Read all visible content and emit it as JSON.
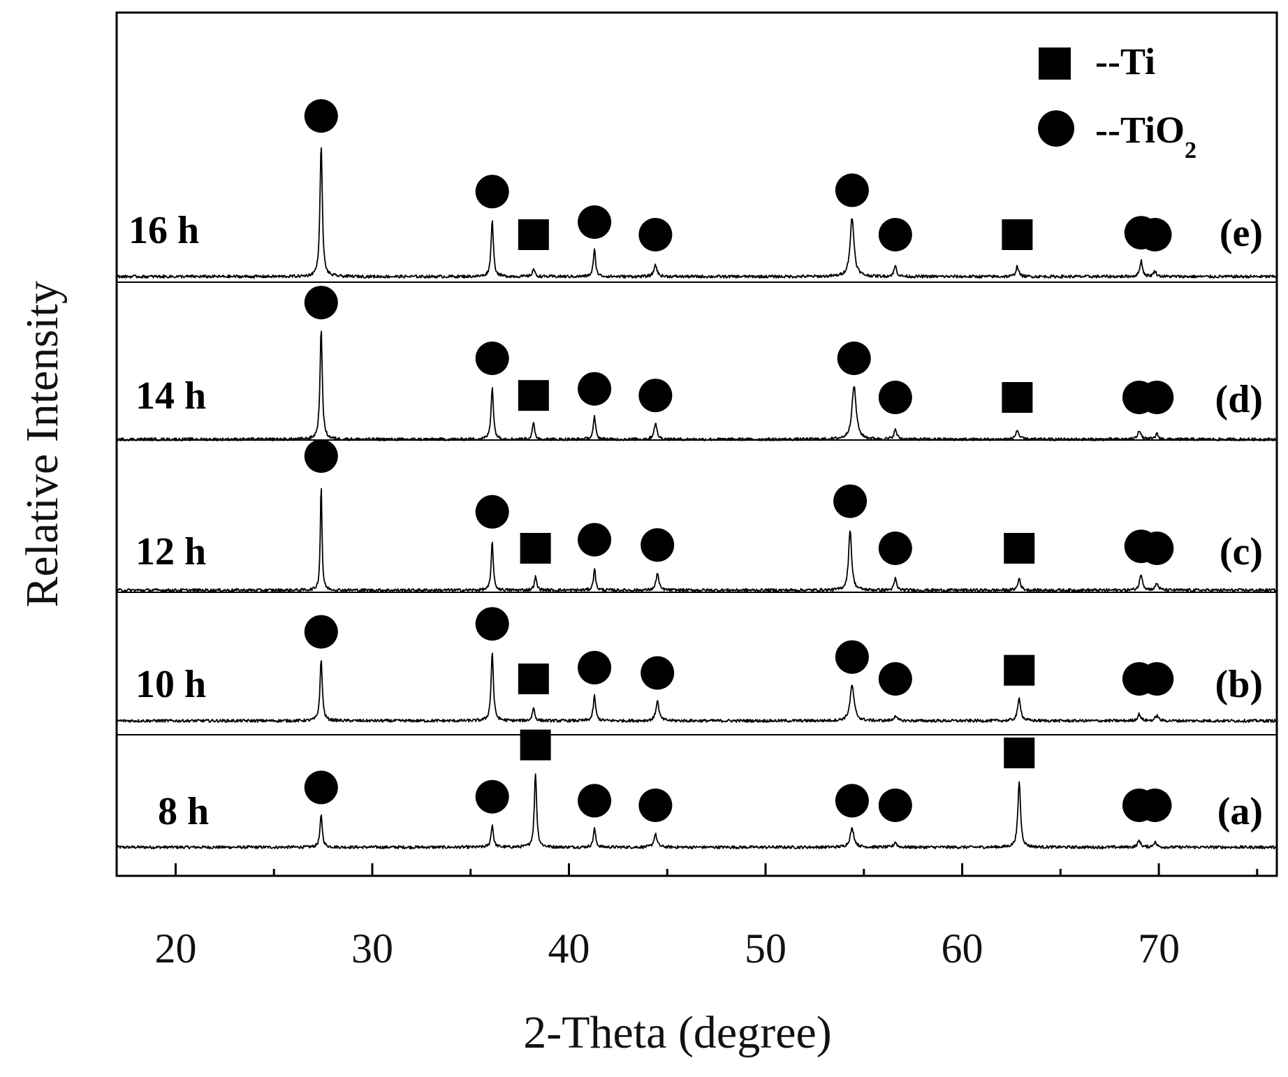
{
  "chart_data": {
    "type": "line",
    "xlabel": "2-Theta (degree)",
    "ylabel": "Relative Intensity",
    "xlim": [
      17,
      76
    ],
    "x_ticks": [
      20,
      30,
      40,
      50,
      60,
      70
    ],
    "x_tick_labels": [
      "20",
      "30",
      "40",
      "50",
      "60",
      "70"
    ],
    "y_ticks_shown": false,
    "grid": false,
    "stacked_offset": true,
    "legend": {
      "position": "top-right",
      "items": [
        {
          "marker": "square",
          "prefix": "--Ti",
          "sub": ""
        },
        {
          "marker": "circle",
          "prefix": "--TiO",
          "sub": "2"
        }
      ]
    },
    "series": [
      {
        "name": "8 h",
        "label": "(a)",
        "peaks": [
          {
            "x": 27.4,
            "h": 0.24,
            "w": 0.07,
            "marker": "circle"
          },
          {
            "x": 36.1,
            "h": 0.17,
            "w": 0.07,
            "marker": "circle"
          },
          {
            "x": 38.3,
            "h": 0.56,
            "w": 0.07,
            "marker": "square"
          },
          {
            "x": 41.3,
            "h": 0.14,
            "w": 0.07,
            "marker": "circle"
          },
          {
            "x": 44.4,
            "h": 0.1,
            "w": 0.09,
            "marker": "circle"
          },
          {
            "x": 54.4,
            "h": 0.14,
            "w": 0.12,
            "marker": "circle"
          },
          {
            "x": 56.6,
            "h": 0.04,
            "w": 0.08,
            "marker": "circle"
          },
          {
            "x": 62.9,
            "h": 0.5,
            "w": 0.08,
            "marker": "square"
          },
          {
            "x": 69.0,
            "h": 0.05,
            "w": 0.09,
            "marker": "circle"
          },
          {
            "x": 69.8,
            "h": 0.04,
            "w": 0.09,
            "marker": "circle"
          }
        ]
      },
      {
        "name": "10 h",
        "label": "(b)",
        "peaks": [
          {
            "x": 27.4,
            "h": 0.46,
            "w": 0.07,
            "marker": "circle"
          },
          {
            "x": 36.1,
            "h": 0.52,
            "w": 0.07,
            "marker": "circle"
          },
          {
            "x": 38.2,
            "h": 0.1,
            "w": 0.07,
            "marker": "square"
          },
          {
            "x": 41.3,
            "h": 0.19,
            "w": 0.07,
            "marker": "circle"
          },
          {
            "x": 44.5,
            "h": 0.15,
            "w": 0.09,
            "marker": "circle"
          },
          {
            "x": 54.4,
            "h": 0.27,
            "w": 0.12,
            "marker": "circle"
          },
          {
            "x": 56.6,
            "h": 0.04,
            "w": 0.08,
            "marker": "circle"
          },
          {
            "x": 62.9,
            "h": 0.17,
            "w": 0.09,
            "marker": "square"
          },
          {
            "x": 69.0,
            "h": 0.05,
            "w": 0.09,
            "marker": "circle"
          },
          {
            "x": 69.9,
            "h": 0.04,
            "w": 0.09,
            "marker": "circle"
          }
        ]
      },
      {
        "name": "12 h",
        "label": "(c)",
        "peaks": [
          {
            "x": 27.4,
            "h": 0.8,
            "w": 0.05,
            "marker": "circle"
          },
          {
            "x": 36.1,
            "h": 0.38,
            "w": 0.06,
            "marker": "circle"
          },
          {
            "x": 38.3,
            "h": 0.1,
            "w": 0.07,
            "marker": "square"
          },
          {
            "x": 41.3,
            "h": 0.17,
            "w": 0.06,
            "marker": "circle"
          },
          {
            "x": 44.5,
            "h": 0.13,
            "w": 0.08,
            "marker": "circle"
          },
          {
            "x": 54.3,
            "h": 0.46,
            "w": 0.09,
            "marker": "circle"
          },
          {
            "x": 56.6,
            "h": 0.09,
            "w": 0.07,
            "marker": "circle"
          },
          {
            "x": 62.9,
            "h": 0.09,
            "w": 0.08,
            "marker": "square"
          },
          {
            "x": 69.1,
            "h": 0.12,
            "w": 0.09,
            "marker": "circle"
          },
          {
            "x": 69.9,
            "h": 0.05,
            "w": 0.09,
            "marker": "circle"
          }
        ]
      },
      {
        "name": "14 h",
        "label": "(d)",
        "peaks": [
          {
            "x": 27.4,
            "h": 0.82,
            "w": 0.07,
            "marker": "circle"
          },
          {
            "x": 36.1,
            "h": 0.4,
            "w": 0.07,
            "marker": "circle"
          },
          {
            "x": 38.2,
            "h": 0.12,
            "w": 0.07,
            "marker": "square"
          },
          {
            "x": 41.3,
            "h": 0.17,
            "w": 0.07,
            "marker": "circle"
          },
          {
            "x": 44.4,
            "h": 0.12,
            "w": 0.09,
            "marker": "circle"
          },
          {
            "x": 54.5,
            "h": 0.4,
            "w": 0.13,
            "marker": "circle"
          },
          {
            "x": 56.6,
            "h": 0.07,
            "w": 0.09,
            "marker": "circle"
          },
          {
            "x": 62.8,
            "h": 0.07,
            "w": 0.09,
            "marker": "square"
          },
          {
            "x": 69.0,
            "h": 0.07,
            "w": 0.09,
            "marker": "circle"
          },
          {
            "x": 69.9,
            "h": 0.04,
            "w": 0.09,
            "marker": "circle"
          }
        ]
      },
      {
        "name": "16 h",
        "label": "(e)",
        "peaks": [
          {
            "x": 27.4,
            "h": 1.0,
            "w": 0.07,
            "marker": "circle"
          },
          {
            "x": 36.1,
            "h": 0.43,
            "w": 0.07,
            "marker": "circle"
          },
          {
            "x": 38.2,
            "h": 0.06,
            "w": 0.07,
            "marker": "square"
          },
          {
            "x": 41.3,
            "h": 0.2,
            "w": 0.07,
            "marker": "circle"
          },
          {
            "x": 44.4,
            "h": 0.09,
            "w": 0.09,
            "marker": "circle"
          },
          {
            "x": 54.4,
            "h": 0.44,
            "w": 0.12,
            "marker": "circle"
          },
          {
            "x": 56.6,
            "h": 0.08,
            "w": 0.08,
            "marker": "circle"
          },
          {
            "x": 62.8,
            "h": 0.08,
            "w": 0.08,
            "marker": "square"
          },
          {
            "x": 69.1,
            "h": 0.12,
            "w": 0.08,
            "marker": "circle"
          },
          {
            "x": 69.8,
            "h": 0.04,
            "w": 0.09,
            "marker": "circle"
          }
        ]
      }
    ]
  }
}
